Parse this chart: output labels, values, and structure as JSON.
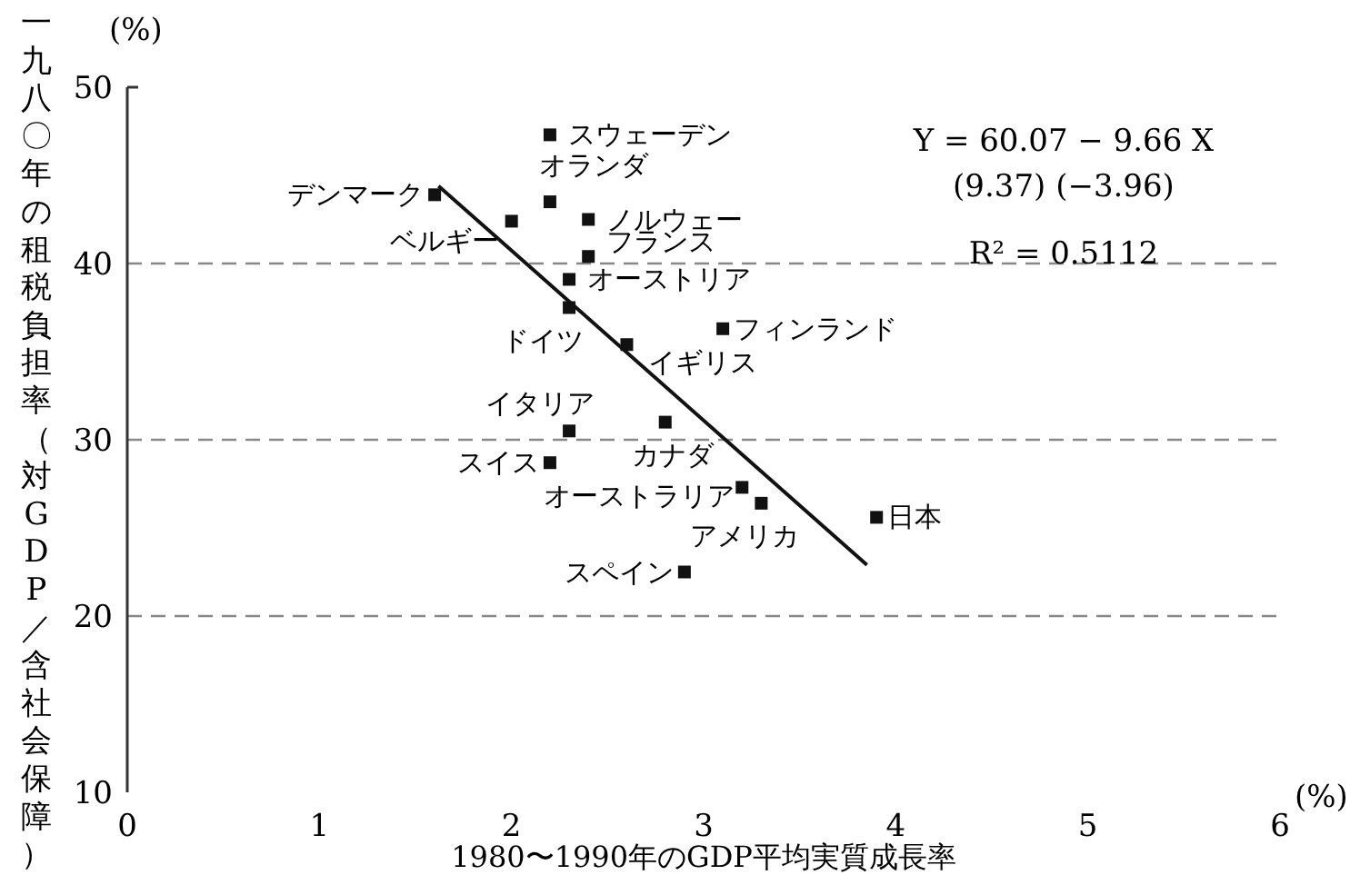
{
  "chart_data": {
    "type": "scatter",
    "xlabel": "1980〜1990年のGDP平均実質成長率",
    "ylabel": "一九八〇年の租税負担率（対GDP／含社会保障）",
    "x": [
      2.2,
      2.2,
      1.6,
      2.0,
      2.4,
      2.4,
      2.3,
      2.3,
      3.1,
      2.6,
      2.3,
      2.8,
      2.2,
      3.2,
      3.3,
      3.9,
      2.9
    ],
    "series": [
      {
        "color": "#111111",
        "marker": "square",
        "values": [
          47.3,
          43.5,
          43.9,
          42.4,
          42.5,
          40.4,
          39.1,
          37.5,
          36.3,
          35.4,
          30.5,
          31.0,
          28.7,
          27.3,
          26.4,
          25.6,
          22.5
        ]
      },
      {
        "type": "line",
        "color": "#111111",
        "marker": "none",
        "line_style": "solid",
        "x": [
          1.62,
          3.85
        ],
        "values": [
          44.4,
          22.9
        ]
      }
    ],
    "xlim": [
      0,
      6
    ],
    "xticks": [
      0,
      1,
      2,
      3,
      4,
      5,
      6
    ],
    "ylim": [
      10,
      50
    ],
    "yticks": [
      10,
      20,
      30,
      40,
      50
    ],
    "ref_lines": [
      {
        "axis": "y",
        "value": 20,
        "line_style": "dashed",
        "color": "#888888"
      },
      {
        "axis": "y",
        "value": 30,
        "line_style": "dashed",
        "color": "#888888"
      },
      {
        "axis": "y",
        "value": 40,
        "line_style": "dashed",
        "color": "#888888"
      }
    ],
    "annotations": [
      {
        "text": "スウェーデン",
        "x": 2.2,
        "y": 47.3
      },
      {
        "text": "オランダ",
        "x": 2.2,
        "y": 43.5
      },
      {
        "text": "デンマーク",
        "x": 1.6,
        "y": 43.9
      },
      {
        "text": "ベルギー",
        "x": 2.0,
        "y": 42.4
      },
      {
        "text": "ノルウェー",
        "x": 2.4,
        "y": 42.5
      },
      {
        "text": "フランス",
        "x": 2.4,
        "y": 40.4
      },
      {
        "text": "オーストリア",
        "x": 2.3,
        "y": 39.1
      },
      {
        "text": "ドイツ",
        "x": 2.3,
        "y": 37.5
      },
      {
        "text": "フィンランド",
        "x": 3.1,
        "y": 36.3
      },
      {
        "text": "イギリス",
        "x": 2.6,
        "y": 35.4
      },
      {
        "text": "イタリア",
        "x": 2.3,
        "y": 30.5
      },
      {
        "text": "カナダ",
        "x": 2.8,
        "y": 31.0
      },
      {
        "text": "スイス",
        "x": 2.2,
        "y": 28.7
      },
      {
        "text": "オーストラリア",
        "x": 3.2,
        "y": 27.3
      },
      {
        "text": "アメリカ",
        "x": 3.3,
        "y": 26.4
      },
      {
        "text": "日本",
        "x": 3.9,
        "y": 25.6
      },
      {
        "text": "スペイン",
        "x": 2.9,
        "y": 22.5
      },
      "Y = 60.07 − 9.66 X",
      "(9.37)  (−3.96)",
      "R² = 0.5112",
      "(%)",
      "(%)"
    ]
  }
}
